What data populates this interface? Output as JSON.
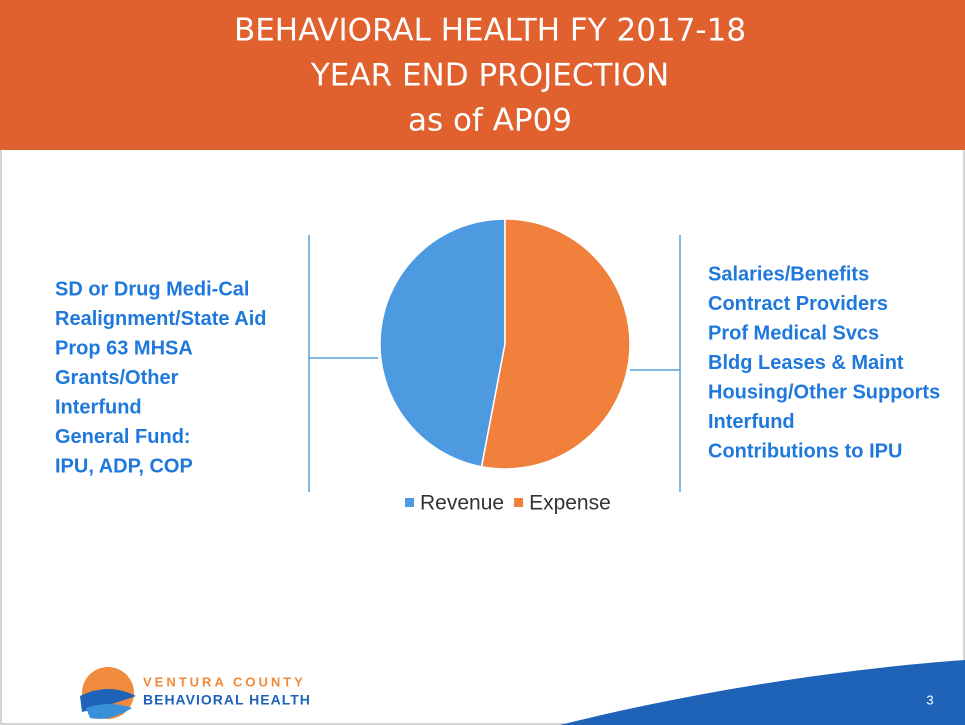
{
  "chart_data": {
    "type": "pie",
    "title": [
      "BEHAVIORAL HEALTH FY 2017-18",
      "YEAR END PROJECTION",
      "as of AP09"
    ],
    "categories": [
      "Revenue",
      "Expense"
    ],
    "values": [
      47,
      53
    ],
    "colors": [
      "#4e9ae0",
      "#f0803c"
    ],
    "legend": "bottom"
  },
  "left_list": [
    "SD or Drug Medi-Cal",
    "Realignment/State Aid",
    "Prop 63 MHSA",
    "Grants/Other",
    "Interfund",
    "General Fund:",
    "IPU, ADP, COP"
  ],
  "right_list": [
    "Salaries/Benefits",
    "Contract Providers",
    "Prof Medical Svcs",
    "Bldg Leases & Maint",
    "Housing/Other Supports",
    "Interfund",
    "Contributions to IPU"
  ],
  "logo": [
    "VENTURA COUNTY",
    "BEHAVIORAL HEALTH"
  ],
  "page_number": "3"
}
